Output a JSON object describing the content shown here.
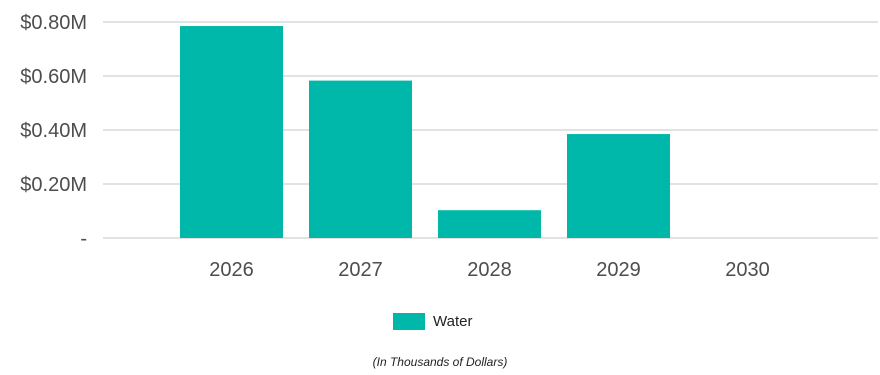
{
  "chart_data": {
    "type": "bar",
    "categories": [
      "2026",
      "2027",
      "2028",
      "2029",
      "2030"
    ],
    "series": [
      {
        "name": "Water",
        "values": [
          0.785,
          0.583,
          0.103,
          0.385,
          0
        ]
      }
    ],
    "y_ticks": [
      {
        "value": 0,
        "label": "-"
      },
      {
        "value": 0.2,
        "label": "$0.20M"
      },
      {
        "value": 0.4,
        "label": "$0.40M"
      },
      {
        "value": 0.6,
        "label": "$0.60M"
      },
      {
        "value": 0.8,
        "label": "$0.80M"
      }
    ],
    "ylim": [
      0,
      0.8
    ],
    "grid": true,
    "legend_position": "bottom-center",
    "footnote": "(In Thousands of Dollars)",
    "colors": {
      "Water": "#00b8aa",
      "grid": "#d9d9d9",
      "text": "#4d4d4d"
    }
  }
}
